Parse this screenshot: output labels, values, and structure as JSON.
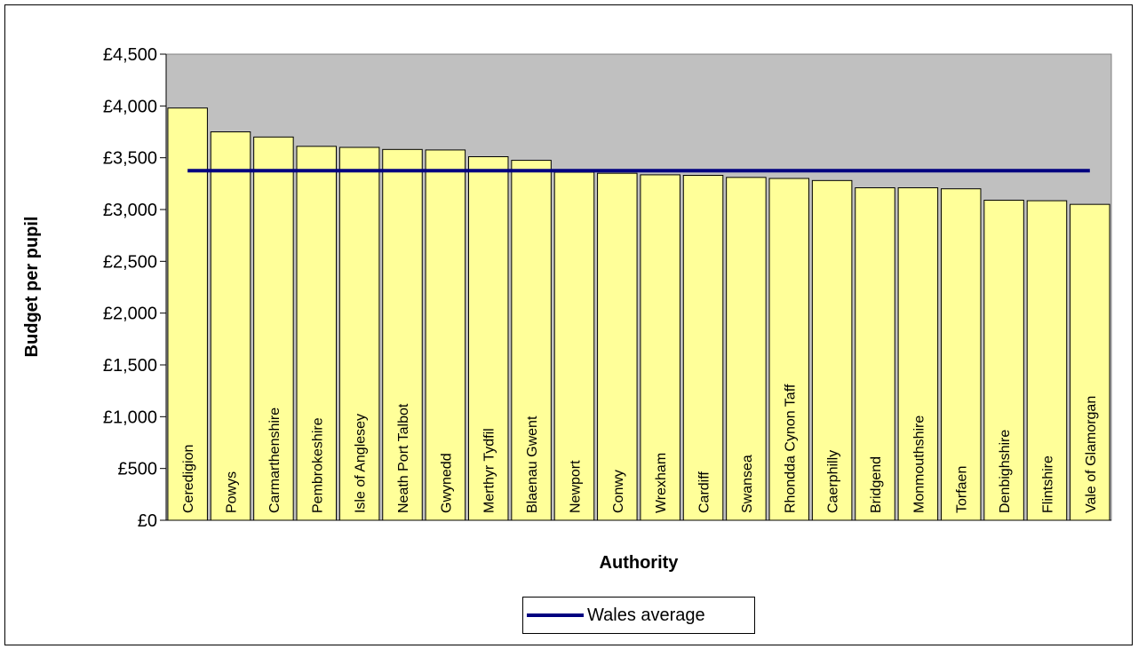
{
  "chart_data": {
    "type": "bar",
    "title": "",
    "xlabel": "Authority",
    "ylabel": "Budget per pupil",
    "ylim": [
      0,
      4500
    ],
    "ytick_step": 500,
    "ytick_labels": [
      "£0",
      "£500",
      "£1,000",
      "£1,500",
      "£2,000",
      "£2,500",
      "£3,000",
      "£3,500",
      "£4,000",
      "£4,500"
    ],
    "categories": [
      "Ceredigion",
      "Powys",
      "Carmarthenshire",
      "Pembrokeshire",
      "Isle of Anglesey",
      "Neath Port Talbot",
      "Gwynedd",
      "Merthyr Tydfil",
      "Blaenau Gwent",
      "Newport",
      "Conwy",
      "Wrexham",
      "Cardiff",
      "Swansea",
      "Rhondda Cynon Taff",
      "Caerphilly",
      "Bridgend",
      "Monmouthshire",
      "Torfaen",
      "Denbighshire",
      "Flintshire",
      "Vale of Glamorgan"
    ],
    "values": [
      3980,
      3750,
      3700,
      3610,
      3600,
      3580,
      3575,
      3510,
      3475,
      3360,
      3350,
      3335,
      3330,
      3310,
      3300,
      3280,
      3210,
      3210,
      3200,
      3090,
      3085,
      3050
    ],
    "series": [
      {
        "name": "",
        "type": "bar",
        "color": "#ffff99"
      },
      {
        "name": "Wales average",
        "type": "line",
        "value": 3375,
        "color": "#000080"
      }
    ],
    "plot_background": "#c0c0c0",
    "grid": false,
    "legend_position": "bottom"
  }
}
